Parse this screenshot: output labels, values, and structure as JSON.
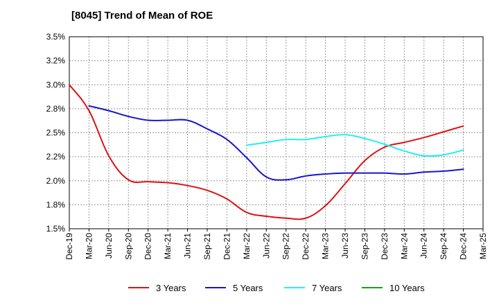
{
  "chart_data": {
    "type": "line",
    "title": "[8045]  Trend of Mean of ROE",
    "xlabel": "",
    "ylabel": "",
    "x": [
      "Dec-19",
      "Mar-20",
      "Jun-20",
      "Sep-20",
      "Dec-20",
      "Mar-21",
      "Jun-21",
      "Sep-21",
      "Dec-21",
      "Mar-22",
      "Jun-22",
      "Sep-22",
      "Dec-22",
      "Mar-23",
      "Jun-23",
      "Sep-23",
      "Dec-23",
      "Mar-24",
      "Jun-24",
      "Sep-24",
      "Dec-24",
      "Mar-25"
    ],
    "ylim": [
      1.5,
      3.5
    ],
    "yticks": [
      "1.5%",
      "1.8%",
      "2.0%",
      "2.2%",
      "2.5%",
      "2.8%",
      "3.0%",
      "3.2%",
      "3.5%"
    ],
    "grid": true,
    "legend_position": "bottom",
    "series": [
      {
        "name": "3 Years",
        "color": "#dd1111",
        "values": [
          3.0,
          2.73,
          2.26,
          2.01,
          1.99,
          1.98,
          1.95,
          1.9,
          1.81,
          1.67,
          1.63,
          1.61,
          1.61,
          1.74,
          1.97,
          2.21,
          2.35,
          2.4,
          2.45,
          2.51,
          2.57,
          null
        ]
      },
      {
        "name": "5 Years",
        "color": "#1515cc",
        "values": [
          null,
          2.78,
          2.73,
          2.67,
          2.63,
          2.63,
          2.63,
          2.54,
          2.43,
          2.24,
          2.04,
          2.01,
          2.05,
          2.07,
          2.08,
          2.08,
          2.08,
          2.07,
          2.09,
          2.1,
          2.12,
          null
        ]
      },
      {
        "name": "7 Years",
        "color": "#22eeee",
        "values": [
          null,
          null,
          null,
          null,
          null,
          null,
          null,
          null,
          null,
          2.37,
          2.4,
          2.43,
          2.43,
          2.46,
          2.48,
          2.44,
          2.38,
          2.31,
          2.26,
          2.27,
          2.32,
          null
        ]
      },
      {
        "name": "10 Years",
        "color": "#229922",
        "values": [
          null,
          null,
          null,
          null,
          null,
          null,
          null,
          null,
          null,
          null,
          null,
          null,
          null,
          null,
          null,
          null,
          null,
          null,
          null,
          null,
          null,
          null
        ]
      }
    ]
  }
}
